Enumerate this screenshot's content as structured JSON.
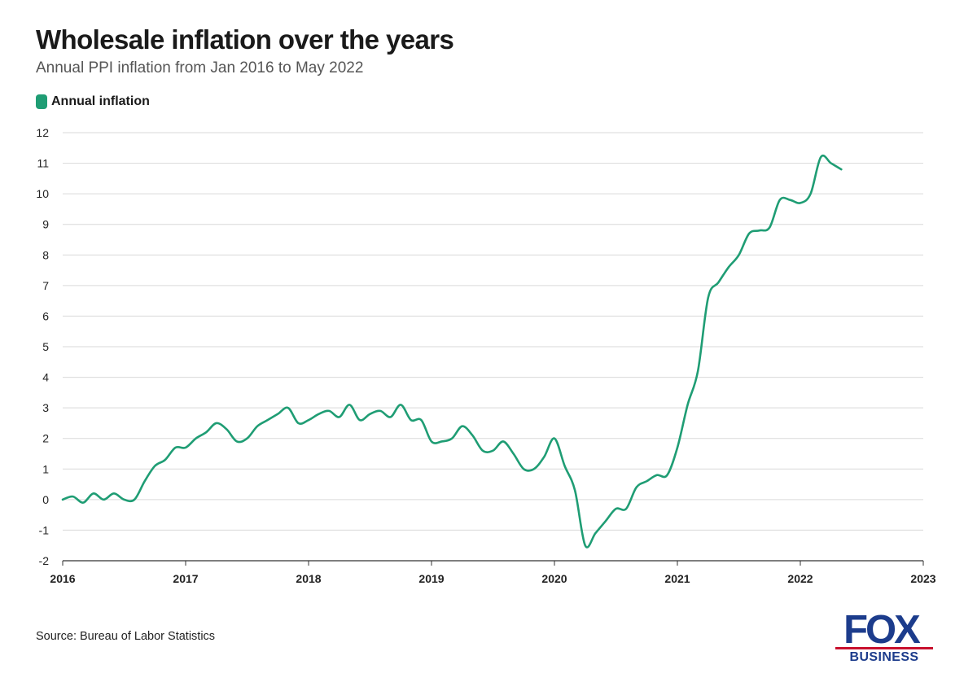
{
  "title": "Wholesale inflation over the years",
  "subtitle": "Annual PPI inflation from Jan 2016 to May 2022",
  "source": "Source: Bureau of Labor Statistics",
  "logo": {
    "top": "FOX",
    "bottom": "BUSINESS",
    "color": "#1c3c8c",
    "accent": "#c8102e"
  },
  "chart_data": {
    "type": "line",
    "title": "Wholesale inflation over the years",
    "subtitle": "Annual PPI inflation from Jan 2016 to May 2022",
    "xlabel": "",
    "ylabel": "",
    "xlim": [
      2016,
      2023
    ],
    "ylim": [
      -2,
      12
    ],
    "x_ticks": [
      "2016",
      "2017",
      "2018",
      "2019",
      "2020",
      "2021",
      "2022",
      "2023"
    ],
    "y_ticks": [
      -2,
      -1,
      0,
      1,
      2,
      3,
      4,
      5,
      6,
      7,
      8,
      9,
      10,
      11,
      12
    ],
    "grid": true,
    "legend_position": "top-left",
    "series": [
      {
        "name": "Annual inflation",
        "color": "#1f9d74",
        "x": [
          "2016-01",
          "2016-02",
          "2016-03",
          "2016-04",
          "2016-05",
          "2016-06",
          "2016-07",
          "2016-08",
          "2016-09",
          "2016-10",
          "2016-11",
          "2016-12",
          "2017-01",
          "2017-02",
          "2017-03",
          "2017-04",
          "2017-05",
          "2017-06",
          "2017-07",
          "2017-08",
          "2017-09",
          "2017-10",
          "2017-11",
          "2017-12",
          "2018-01",
          "2018-02",
          "2018-03",
          "2018-04",
          "2018-05",
          "2018-06",
          "2018-07",
          "2018-08",
          "2018-09",
          "2018-10",
          "2018-11",
          "2018-12",
          "2019-01",
          "2019-02",
          "2019-03",
          "2019-04",
          "2019-05",
          "2019-06",
          "2019-07",
          "2019-08",
          "2019-09",
          "2019-10",
          "2019-11",
          "2019-12",
          "2020-01",
          "2020-02",
          "2020-03",
          "2020-04",
          "2020-05",
          "2020-06",
          "2020-07",
          "2020-08",
          "2020-09",
          "2020-10",
          "2020-11",
          "2020-12",
          "2021-01",
          "2021-02",
          "2021-03",
          "2021-04",
          "2021-05",
          "2021-06",
          "2021-07",
          "2021-08",
          "2021-09",
          "2021-10",
          "2021-11",
          "2021-12",
          "2022-01",
          "2022-02",
          "2022-03",
          "2022-04",
          "2022-05"
        ],
        "values": [
          0.0,
          0.1,
          -0.1,
          0.2,
          0.0,
          0.2,
          0.0,
          0.0,
          0.6,
          1.1,
          1.3,
          1.7,
          1.7,
          2.0,
          2.2,
          2.5,
          2.3,
          1.9,
          2.0,
          2.4,
          2.6,
          2.8,
          3.0,
          2.5,
          2.6,
          2.8,
          2.9,
          2.7,
          3.1,
          2.6,
          2.8,
          2.9,
          2.7,
          3.1,
          2.6,
          2.6,
          1.9,
          1.9,
          2.0,
          2.4,
          2.1,
          1.6,
          1.6,
          1.9,
          1.5,
          1.0,
          1.0,
          1.4,
          2.0,
          1.1,
          0.3,
          -1.5,
          -1.1,
          -0.7,
          -0.3,
          -0.3,
          0.4,
          0.6,
          0.8,
          0.8,
          1.7,
          3.1,
          4.2,
          6.6,
          7.1,
          7.6,
          8.0,
          8.7,
          8.8,
          8.9,
          9.8,
          9.8,
          9.7,
          10.0,
          11.2,
          11.0,
          10.8
        ]
      }
    ]
  }
}
